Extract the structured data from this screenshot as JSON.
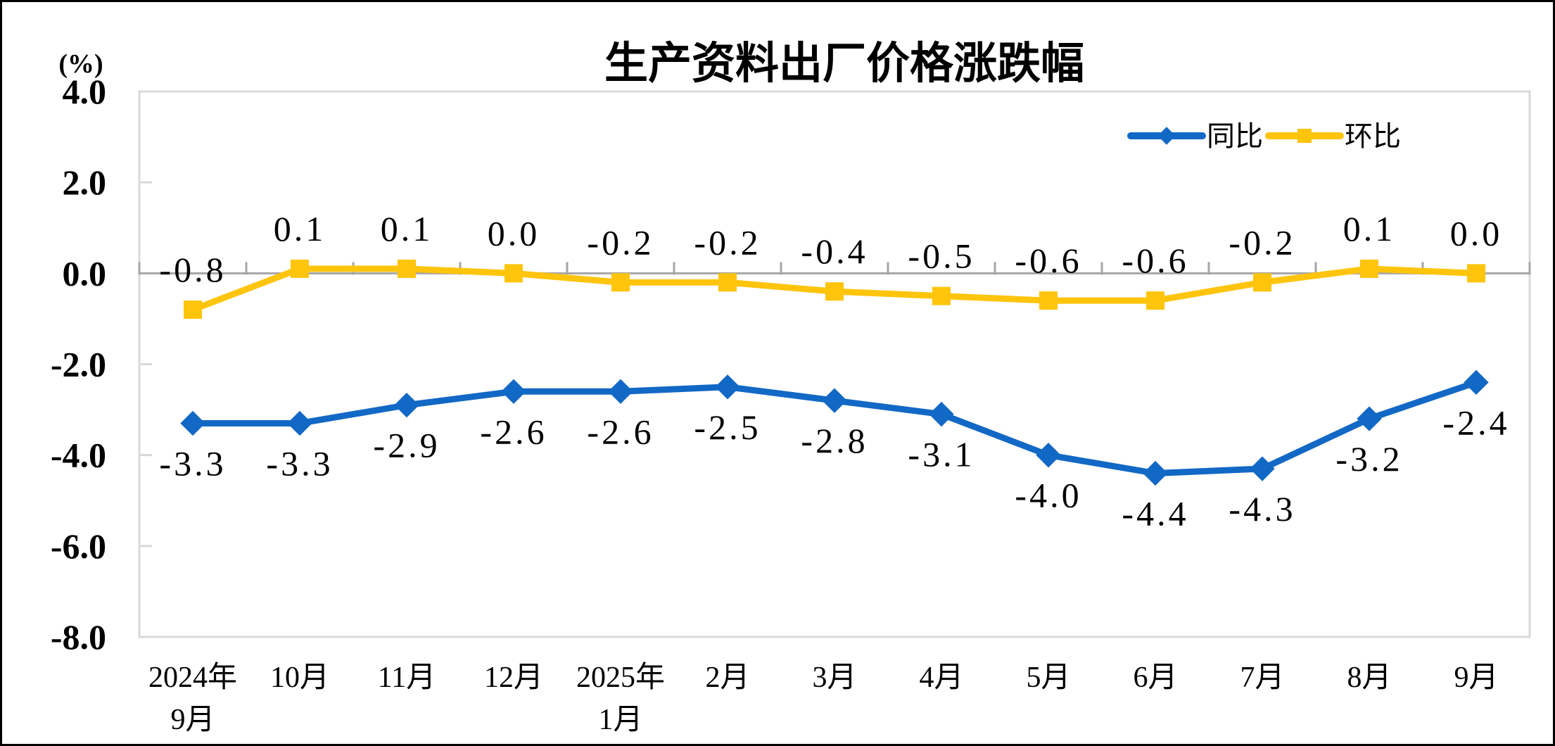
{
  "colors": {
    "plot_border": "#D9D9D9",
    "axis_line": "#A6A6A6",
    "text": "#000000",
    "series_tongbi": "#1268C5",
    "series_huanbi": "#FFC40C"
  },
  "chart_data": {
    "type": "line",
    "title": "生产资料出厂价格涨跌幅",
    "unit_label": "(%)",
    "gridlines": "none (only zero axis line and plot border)",
    "legend": {
      "position": "top-right-inside"
    },
    "categories": [
      [
        "2024年",
        "9月"
      ],
      [
        "10月"
      ],
      [
        "11月"
      ],
      [
        "12月"
      ],
      [
        "2025年",
        "1月"
      ],
      [
        "2月"
      ],
      [
        "3月"
      ],
      [
        "4月"
      ],
      [
        "5月"
      ],
      [
        "6月"
      ],
      [
        "7月"
      ],
      [
        "8月"
      ],
      [
        "9月"
      ]
    ],
    "y_axis": {
      "min": -8.0,
      "max": 4.0,
      "step": 2.0,
      "ticks": [
        "4.0",
        "2.0",
        "0.0",
        "-2.0",
        "-4.0",
        "-6.0",
        "-8.0"
      ]
    },
    "series": [
      {
        "id": "tongbi",
        "name": "同比",
        "color": "#1268C5",
        "marker": "diamond",
        "label_position": "below",
        "values": [
          -3.3,
          -3.3,
          -2.9,
          -2.6,
          -2.6,
          -2.5,
          -2.8,
          -3.1,
          -4.0,
          -4.4,
          -4.3,
          -3.2,
          -2.4
        ]
      },
      {
        "id": "huanbi",
        "name": "环比",
        "color": "#FFC40C",
        "marker": "square",
        "label_position": "above",
        "values": [
          -0.8,
          0.1,
          0.1,
          0.0,
          -0.2,
          -0.2,
          -0.4,
          -0.5,
          -0.6,
          -0.6,
          -0.2,
          0.1,
          0.0
        ]
      }
    ]
  }
}
